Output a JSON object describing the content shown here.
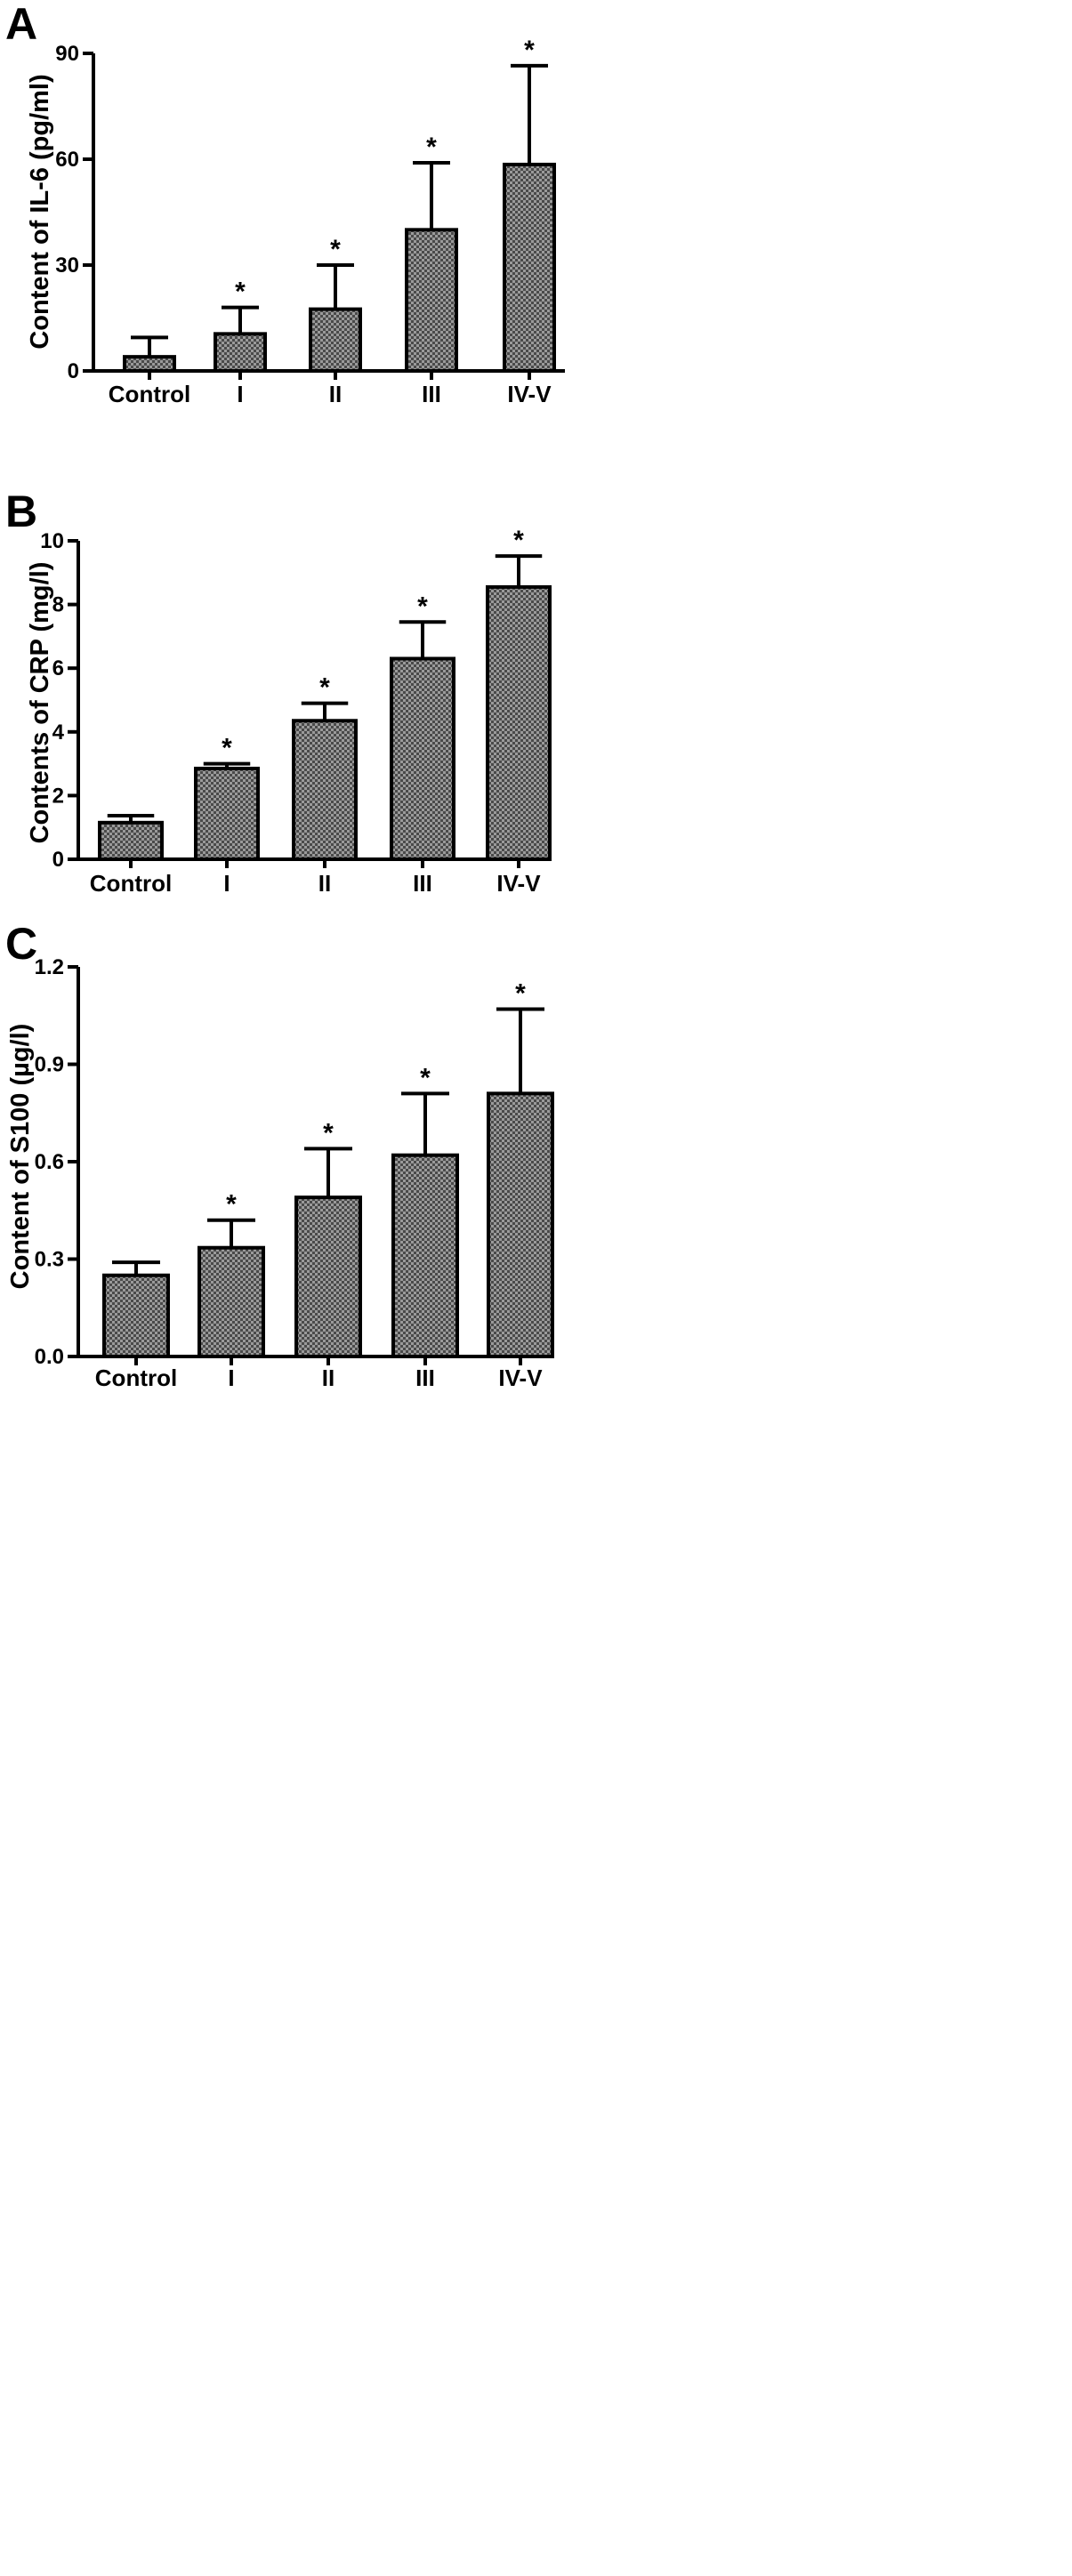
{
  "colors": {
    "bar_fill": "#8c8c8c",
    "stroke": "#000000",
    "background": "#ffffff"
  },
  "chart_data": [
    {
      "panel": "A",
      "type": "bar",
      "categories": [
        "Control",
        "I",
        "II",
        "III",
        "IV-V"
      ],
      "values": [
        4,
        10.5,
        17.5,
        40,
        58.5
      ],
      "errors": [
        5.5,
        7.5,
        12.5,
        19,
        28
      ],
      "significance": [
        "",
        "*",
        "*",
        "*",
        "*"
      ],
      "ylabel": "Content of  IL-6 (pg/ml)",
      "ylim": [
        0,
        90
      ],
      "yticks": [
        0,
        30,
        60,
        90
      ],
      "ytick_labels": [
        "0",
        "30",
        "60",
        "90"
      ]
    },
    {
      "panel": "B",
      "type": "bar",
      "categories": [
        "Control",
        "I",
        "II",
        "III",
        "IV-V"
      ],
      "values": [
        1.15,
        2.85,
        4.35,
        6.3,
        8.55
      ],
      "errors": [
        0.22,
        0.15,
        0.55,
        1.15,
        0.97
      ],
      "significance": [
        "",
        "*",
        "*",
        "*",
        "*"
      ],
      "ylabel": "Contents of CRP (mg/l)",
      "ylim": [
        0,
        10
      ],
      "yticks": [
        0,
        2,
        4,
        6,
        8,
        10
      ],
      "ytick_labels": [
        "0",
        "2",
        "4",
        "6",
        "8",
        "10"
      ]
    },
    {
      "panel": "C",
      "type": "bar",
      "categories": [
        "Control",
        "I",
        "II",
        "III",
        "IV-V"
      ],
      "values": [
        0.25,
        0.335,
        0.49,
        0.62,
        0.81
      ],
      "errors": [
        0.04,
        0.085,
        0.15,
        0.19,
        0.26
      ],
      "significance": [
        "",
        "*",
        "*",
        "*",
        "*"
      ],
      "ylabel": "Content of S100 (µg/l)",
      "ylim": [
        0,
        1.2
      ],
      "yticks": [
        0,
        0.3,
        0.6,
        0.9,
        1.2
      ],
      "ytick_labels": [
        "0.0",
        "0.3",
        "0.6",
        "0.9",
        "1.2"
      ]
    }
  ]
}
